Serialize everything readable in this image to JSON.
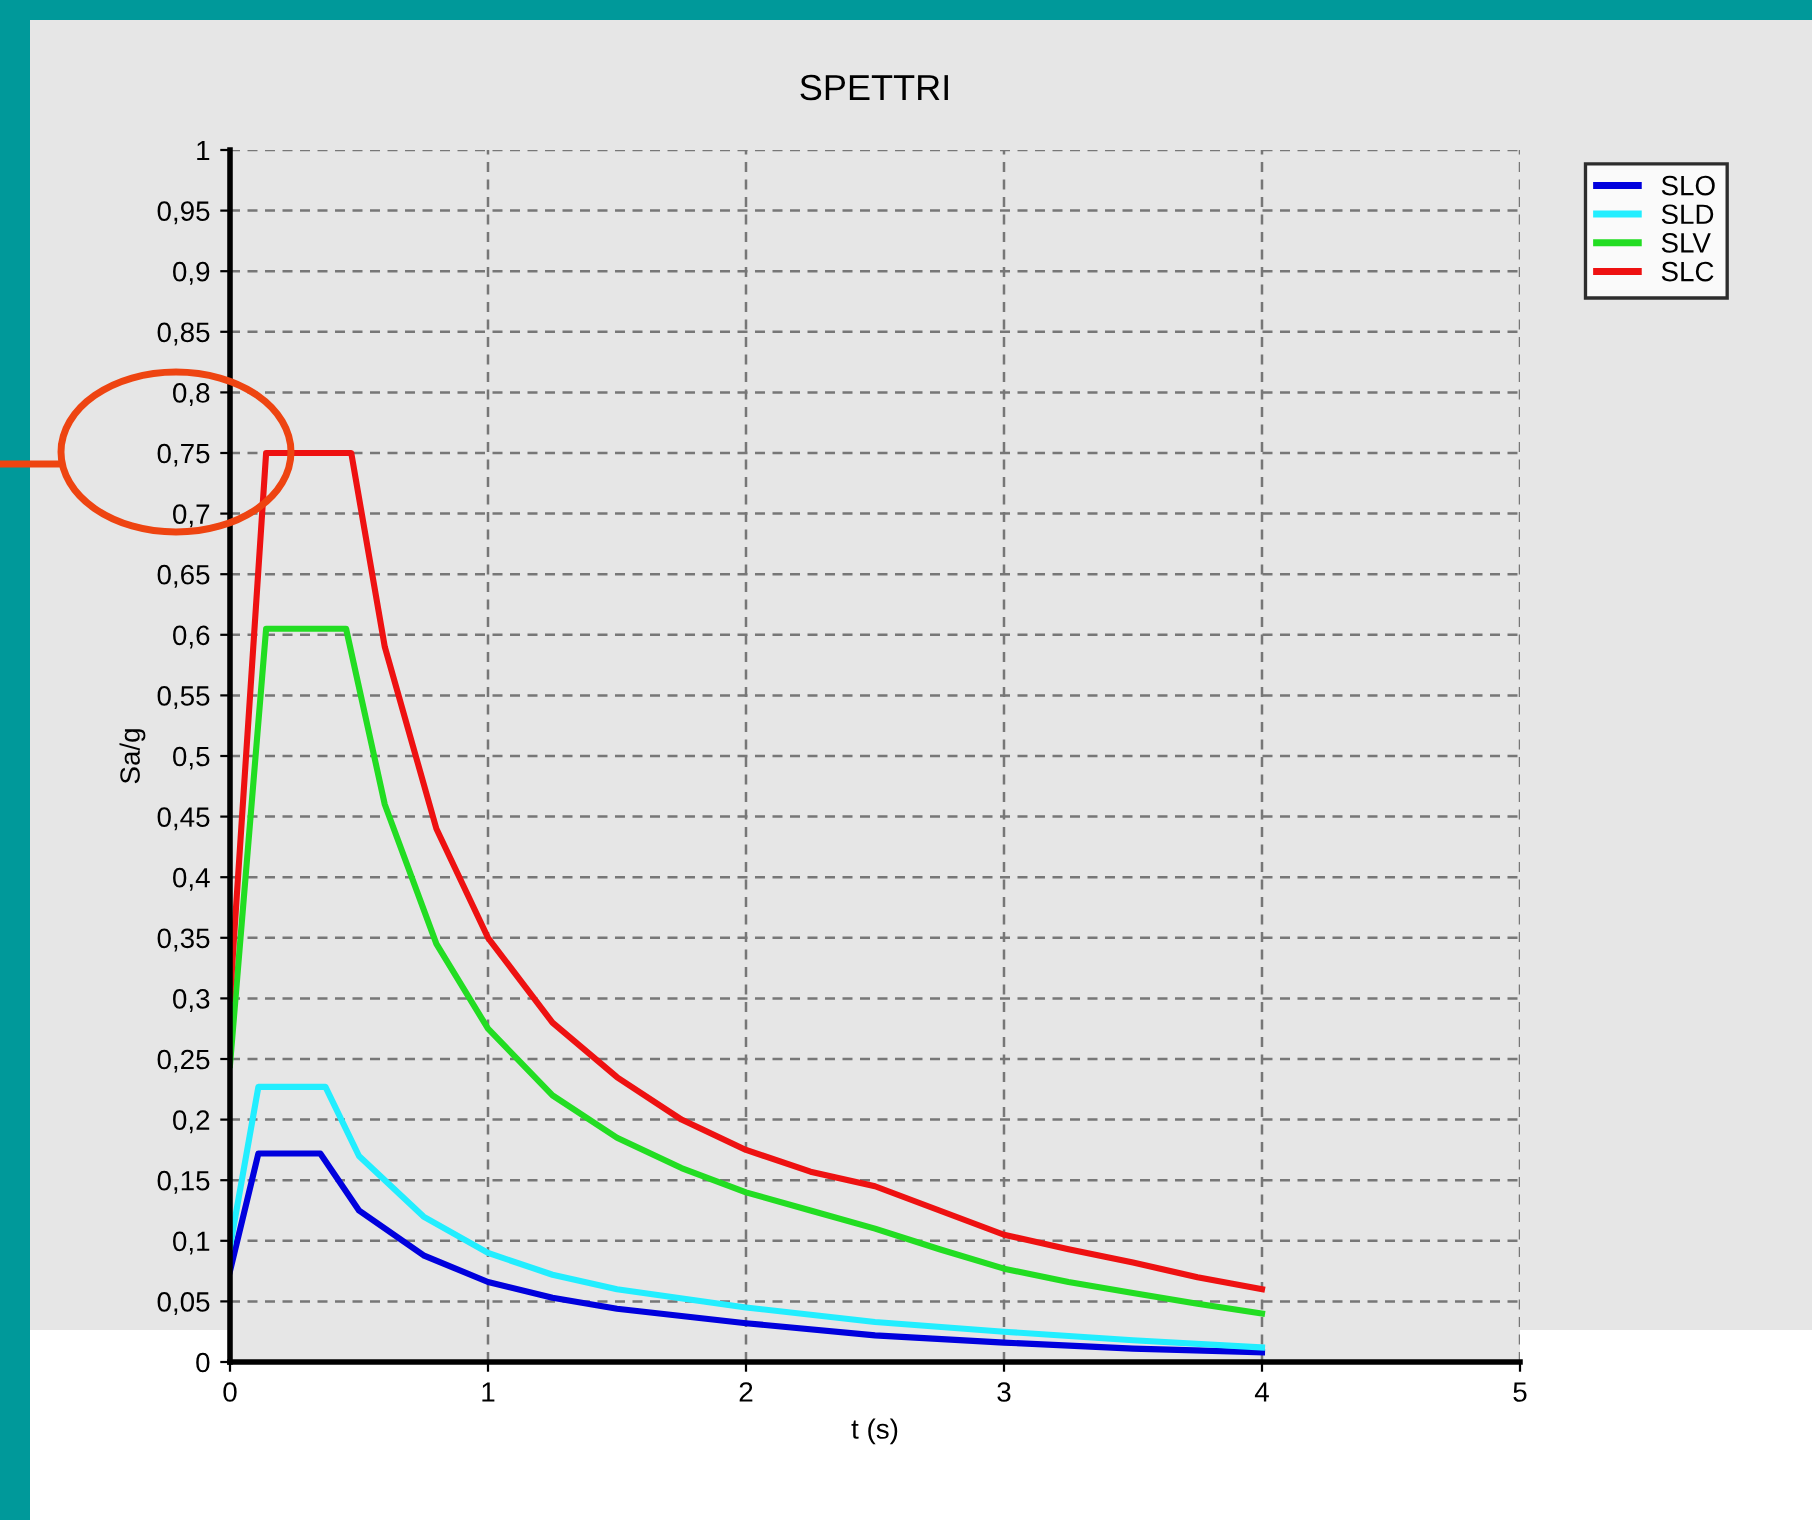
{
  "chart_data": {
    "type": "line",
    "title": "SPETTRI",
    "xlabel": "t (s)",
    "ylabel": "Sa/g",
    "xlim": [
      0,
      5
    ],
    "xticks": [
      0,
      1,
      2,
      3,
      4,
      5
    ],
    "ylim": [
      0,
      1
    ],
    "yticks": [
      0,
      {
        "value": 0.05,
        "label": "0,05"
      },
      {
        "value": 0.1,
        "label": "0,1"
      },
      {
        "value": 0.15,
        "label": "0,15"
      },
      {
        "value": 0.2,
        "label": "0,2"
      },
      {
        "value": 0.25,
        "label": "0,25"
      },
      {
        "value": 0.3,
        "label": "0,3"
      },
      {
        "value": 0.35,
        "label": "0,35"
      },
      {
        "value": 0.4,
        "label": "0,4"
      },
      {
        "value": 0.45,
        "label": "0,45"
      },
      {
        "value": 0.5,
        "label": "0,5"
      },
      {
        "value": 0.55,
        "label": "0,55"
      },
      {
        "value": 0.6,
        "label": "0,6"
      },
      {
        "value": 0.65,
        "label": "0,65"
      },
      {
        "value": 0.7,
        "label": "0,7"
      },
      {
        "value": 0.75,
        "label": "0,75"
      },
      {
        "value": 0.8,
        "label": "0,8"
      },
      {
        "value": 0.85,
        "label": "0,85"
      },
      {
        "value": 0.9,
        "label": "0,9"
      },
      {
        "value": 0.95,
        "label": "0,95"
      },
      1
    ],
    "grid": true,
    "legend": "top right",
    "marker": "none",
    "line_style": "solid",
    "series": [
      {
        "name": "SLO",
        "color": "#0000dd",
        "x": [
          0,
          0.11,
          0.35,
          0.5,
          0.75,
          1,
          1.25,
          1.5,
          2,
          2.5,
          3,
          3.5,
          4
        ],
        "values": [
          0.075,
          0.172,
          0.172,
          0.125,
          0.088,
          0.066,
          0.053,
          0.044,
          0.032,
          0.022,
          0.016,
          0.011,
          0.008
        ]
      },
      {
        "name": "SLD",
        "color": "#22eeff",
        "x": [
          0,
          0.11,
          0.37,
          0.5,
          0.75,
          1,
          1.25,
          1.5,
          2,
          2.5,
          3,
          3.5,
          4
        ],
        "values": [
          0.095,
          0.227,
          0.227,
          0.17,
          0.12,
          0.09,
          0.072,
          0.06,
          0.045,
          0.033,
          0.025,
          0.018,
          0.012
        ]
      },
      {
        "name": "SLV",
        "color": "#22dd22",
        "x": [
          0,
          0.14,
          0.45,
          0.6,
          0.8,
          1,
          1.25,
          1.5,
          1.75,
          2,
          2.25,
          2.5,
          2.75,
          3,
          3.25,
          3.5,
          3.75,
          4
        ],
        "values": [
          0.245,
          0.605,
          0.605,
          0.46,
          0.345,
          0.275,
          0.22,
          0.185,
          0.16,
          0.14,
          0.125,
          0.11,
          0.093,
          0.077,
          0.066,
          0.057,
          0.048,
          0.04
        ]
      },
      {
        "name": "SLC",
        "color": "#ee1111",
        "x": [
          0,
          0.14,
          0.47,
          0.6,
          0.8,
          1,
          1.25,
          1.5,
          1.75,
          2,
          2.25,
          2.5,
          2.75,
          3,
          3.25,
          3.5,
          3.75,
          4
        ],
        "values": [
          0.3,
          0.75,
          0.75,
          0.59,
          0.44,
          0.35,
          0.28,
          0.235,
          0.2,
          0.175,
          0.157,
          0.145,
          0.125,
          0.105,
          0.093,
          0.082,
          0.07,
          0.06
        ]
      }
    ]
  }
}
